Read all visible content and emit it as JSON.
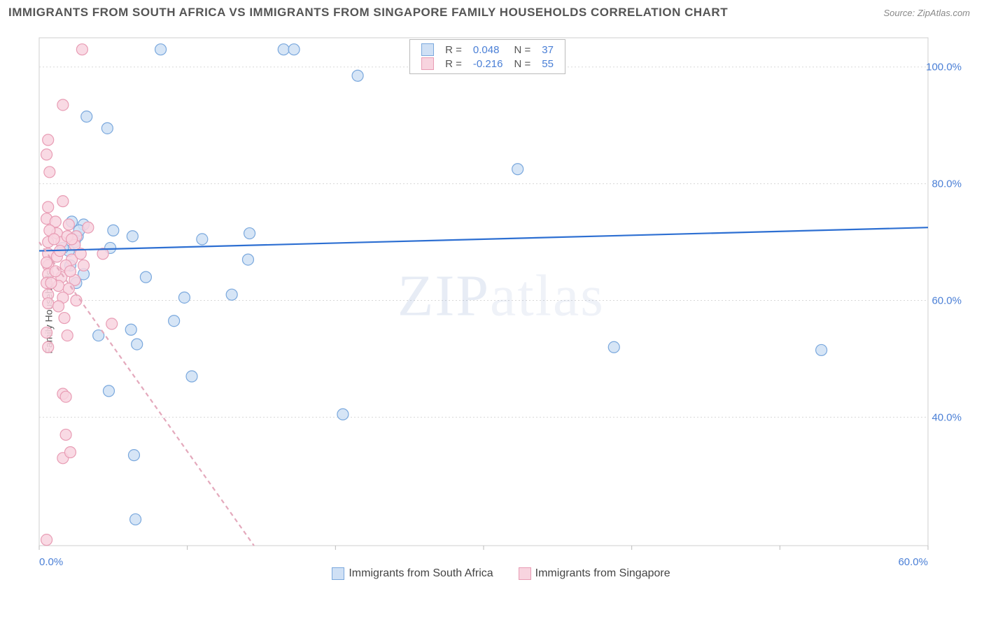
{
  "title": "IMMIGRANTS FROM SOUTH AFRICA VS IMMIGRANTS FROM SINGAPORE FAMILY HOUSEHOLDS CORRELATION CHART",
  "source": "Source: ZipAtlas.com",
  "y_axis_label": "Family Households",
  "watermark": {
    "bold": "ZIP",
    "light": "atlas"
  },
  "chart": {
    "type": "scatter",
    "background_color": "#ffffff",
    "grid_color": "#d8d8d8",
    "border_color": "#cfcfcf",
    "xlim": [
      0,
      60
    ],
    "ylim": [
      18,
      105
    ],
    "x_ticks": [
      0,
      10,
      20,
      30,
      40,
      50,
      60
    ],
    "x_tick_labels": [
      "0.0%",
      "",
      "",
      "",
      "",
      "",
      "60.0%"
    ],
    "y_ticks": [
      40,
      60,
      80,
      100
    ],
    "y_tick_labels": [
      "40.0%",
      "60.0%",
      "80.0%",
      "100.0%"
    ],
    "tick_label_color": "#4a7fd6",
    "tick_label_fontsize": 15,
    "marker_radius": 8,
    "marker_stroke_width": 1.2,
    "trend_line_width": 2.2
  },
  "series": [
    {
      "name": "Immigrants from South Africa",
      "fill": "#cfe0f5",
      "stroke": "#7aa8dd",
      "trend_color": "#2d6fd2",
      "trend_dash": "none",
      "r_value": "0.048",
      "n_value": "37",
      "trend_start": [
        0,
        68.5
      ],
      "trend_end": [
        60,
        72.5
      ],
      "points": [
        [
          8.2,
          103
        ],
        [
          16.5,
          103
        ],
        [
          17.2,
          103
        ],
        [
          21.5,
          98.5
        ],
        [
          3.2,
          91.5
        ],
        [
          4.6,
          89.5
        ],
        [
          32.3,
          82.5
        ],
        [
          2.2,
          73.5
        ],
        [
          3.0,
          73
        ],
        [
          5.0,
          72
        ],
        [
          2.6,
          71
        ],
        [
          6.3,
          71
        ],
        [
          14.2,
          71.5
        ],
        [
          2.4,
          70
        ],
        [
          4.8,
          69
        ],
        [
          11.0,
          70.5
        ],
        [
          2.0,
          68.5
        ],
        [
          14.1,
          67
        ],
        [
          3.0,
          64.5
        ],
        [
          7.2,
          64
        ],
        [
          2.5,
          63
        ],
        [
          9.8,
          60.5
        ],
        [
          13.0,
          61
        ],
        [
          4.0,
          54
        ],
        [
          6.2,
          55
        ],
        [
          9.1,
          56.5
        ],
        [
          6.6,
          52.5
        ],
        [
          10.3,
          47
        ],
        [
          38.8,
          52
        ],
        [
          20.5,
          40.5
        ],
        [
          4.7,
          44.5
        ],
        [
          6.4,
          33.5
        ],
        [
          6.5,
          22.5
        ],
        [
          1.6,
          69
        ],
        [
          2.1,
          66
        ],
        [
          52.8,
          51.5
        ],
        [
          2.7,
          72
        ]
      ]
    },
    {
      "name": "Immigrants from Singapore",
      "fill": "#f8d4df",
      "stroke": "#e89cb4",
      "trend_color": "#e4a9bc",
      "trend_dash": "6 5",
      "r_value": "-0.216",
      "n_value": "55",
      "trend_start": [
        0,
        70
      ],
      "trend_end": [
        14.5,
        18
      ],
      "points": [
        [
          2.9,
          103
        ],
        [
          1.6,
          93.5
        ],
        [
          0.6,
          87.5
        ],
        [
          0.5,
          85
        ],
        [
          0.7,
          82
        ],
        [
          1.6,
          77
        ],
        [
          0.6,
          76
        ],
        [
          0.5,
          74
        ],
        [
          1.1,
          73.5
        ],
        [
          2.0,
          73
        ],
        [
          1.2,
          71.5
        ],
        [
          2.5,
          71
        ],
        [
          3.3,
          72.5
        ],
        [
          0.6,
          70
        ],
        [
          1.5,
          70
        ],
        [
          2.4,
          69.5
        ],
        [
          0.6,
          68
        ],
        [
          1.2,
          67.5
        ],
        [
          2.2,
          67
        ],
        [
          0.6,
          66
        ],
        [
          1.8,
          66
        ],
        [
          0.6,
          64.5
        ],
        [
          1.5,
          64
        ],
        [
          2.4,
          63.5
        ],
        [
          0.5,
          63
        ],
        [
          1.3,
          62.5
        ],
        [
          2.0,
          62
        ],
        [
          0.6,
          61
        ],
        [
          1.6,
          60.5
        ],
        [
          0.6,
          59.5
        ],
        [
          2.5,
          60
        ],
        [
          0.5,
          54.5
        ],
        [
          1.9,
          54
        ],
        [
          0.6,
          52
        ],
        [
          1.6,
          44
        ],
        [
          1.8,
          43.5
        ],
        [
          1.8,
          37
        ],
        [
          1.6,
          33
        ],
        [
          2.1,
          34
        ],
        [
          0.5,
          19
        ],
        [
          0.7,
          72
        ],
        [
          1.0,
          70.5
        ],
        [
          1.4,
          68.5
        ],
        [
          2.1,
          65
        ],
        [
          2.8,
          68
        ],
        [
          1.9,
          71
        ],
        [
          0.8,
          63
        ],
        [
          1.1,
          65
        ],
        [
          0.5,
          66.5
        ],
        [
          1.3,
          59
        ],
        [
          1.7,
          57
        ],
        [
          3.0,
          66
        ],
        [
          4.9,
          56
        ],
        [
          4.3,
          68
        ],
        [
          2.2,
          70.5
        ]
      ]
    }
  ],
  "legend_top": {
    "r_label": "R =",
    "n_label": "N ="
  },
  "legend_bottom": {
    "items": [
      "Immigrants from South Africa",
      "Immigrants from Singapore"
    ]
  }
}
